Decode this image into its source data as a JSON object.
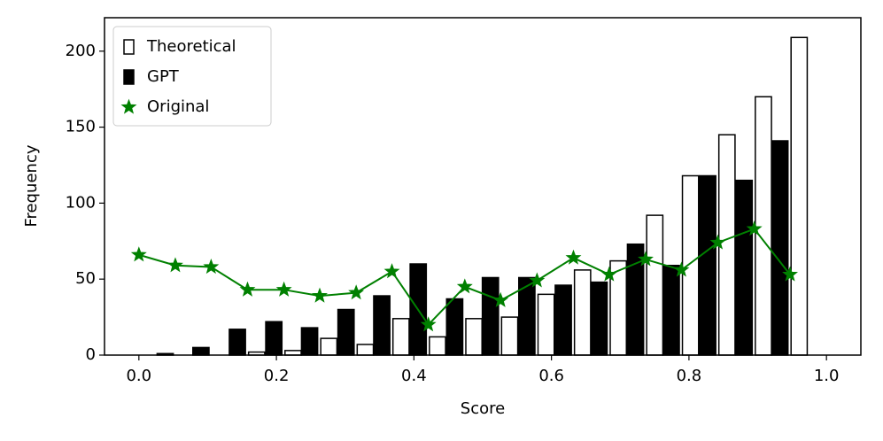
{
  "chart_data": {
    "type": "combo",
    "xlabel": "Score",
    "ylabel": "Frequency",
    "x": [
      0,
      0.053,
      0.105,
      0.158,
      0.211,
      0.263,
      0.316,
      0.368,
      0.421,
      0.474,
      0.526,
      0.579,
      0.632,
      0.684,
      0.737,
      0.789,
      0.842,
      0.895,
      0.947
    ],
    "series": [
      {
        "name": "Theoretical",
        "type": "bar",
        "color": "#ffffff",
        "edgecolor": "#000000",
        "values": [
          0,
          0,
          0,
          2,
          3,
          11,
          7,
          24,
          12,
          24,
          25,
          40,
          56,
          62,
          92,
          118,
          145,
          170,
          209
        ]
      },
      {
        "name": "GPT",
        "type": "bar",
        "color": "#000000",
        "edgecolor": "#000000",
        "values": [
          0,
          1,
          5,
          17,
          22,
          18,
          30,
          39,
          60,
          37,
          51,
          51,
          46,
          48,
          73,
          59,
          118,
          115,
          141
        ]
      },
      {
        "name": "Original",
        "type": "line",
        "marker": "star",
        "color": "#008000",
        "values": [
          66,
          59,
          58,
          43,
          43,
          39,
          41,
          55,
          20,
          45,
          36,
          49,
          64,
          53,
          63,
          56,
          74,
          83,
          53
        ]
      }
    ],
    "xlim": [
      -0.05,
      1.05
    ],
    "xticks": [
      {
        "value": 0,
        "label": "0.0"
      },
      0.2,
      0.4,
      0.6,
      0.8,
      {
        "value": 1,
        "label": "1.0"
      }
    ],
    "ylim": [
      0,
      222
    ],
    "yticks": [
      0,
      50,
      100,
      150,
      200
    ],
    "legend": "upper left"
  }
}
